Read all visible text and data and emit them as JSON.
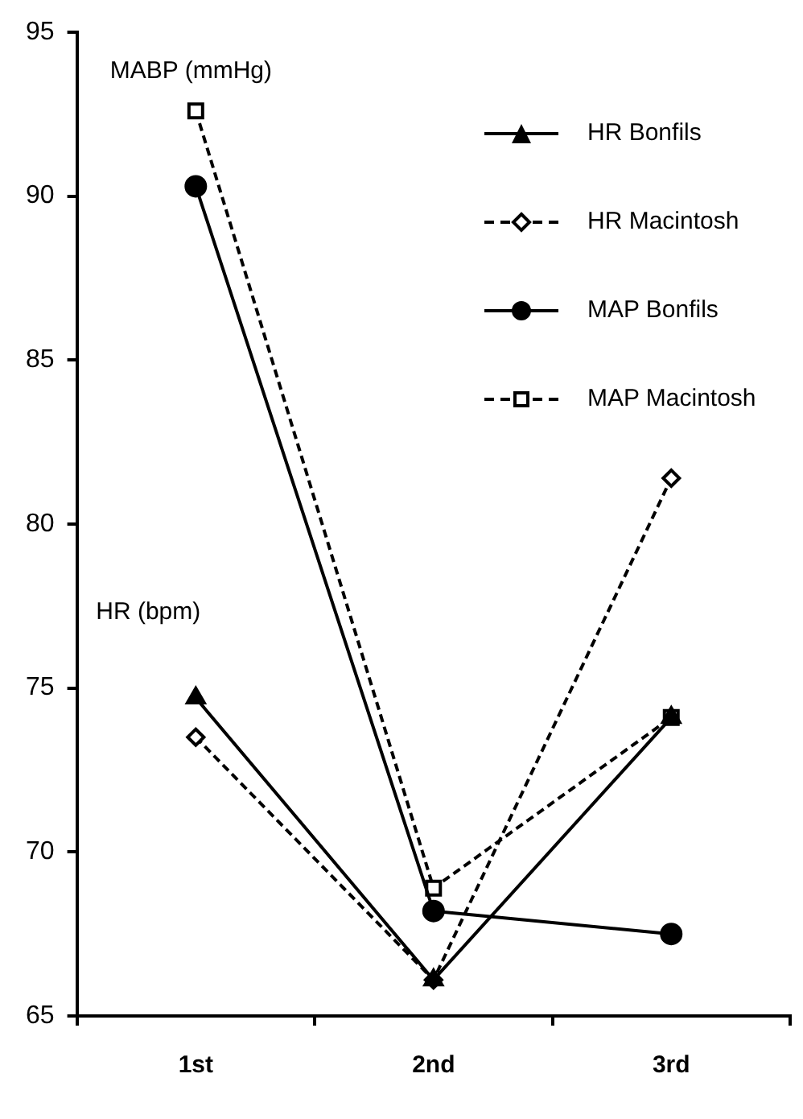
{
  "chart_data": {
    "type": "line",
    "categories": [
      "1st",
      "2nd",
      "3rd"
    ],
    "series": [
      {
        "name": "HR Bonfils",
        "color": "#000000",
        "values": [
          74.7,
          66.1,
          74.1
        ],
        "marker": "triangle",
        "line_style": "solid"
      },
      {
        "name": "HR Macintosh",
        "color": "#000000",
        "values": [
          73.5,
          66.1,
          81.4
        ],
        "marker": "diamond",
        "line_style": "dashed"
      },
      {
        "name": "MAP Bonfils",
        "color": "#000000",
        "values": [
          90.3,
          68.2,
          67.5
        ],
        "marker": "circle",
        "line_style": "solid"
      },
      {
        "name": "MAP Macintosh",
        "color": "#000000",
        "values": [
          92.6,
          68.9,
          74.1
        ],
        "marker": "square",
        "line_style": "dashed"
      }
    ],
    "ylim": [
      65,
      95
    ],
    "yticks": [
      65,
      70,
      75,
      80,
      85,
      90,
      95
    ],
    "annotations": [
      "MABP (mmHg)",
      "HR (bpm)"
    ],
    "grid": false,
    "legend": "top right"
  }
}
